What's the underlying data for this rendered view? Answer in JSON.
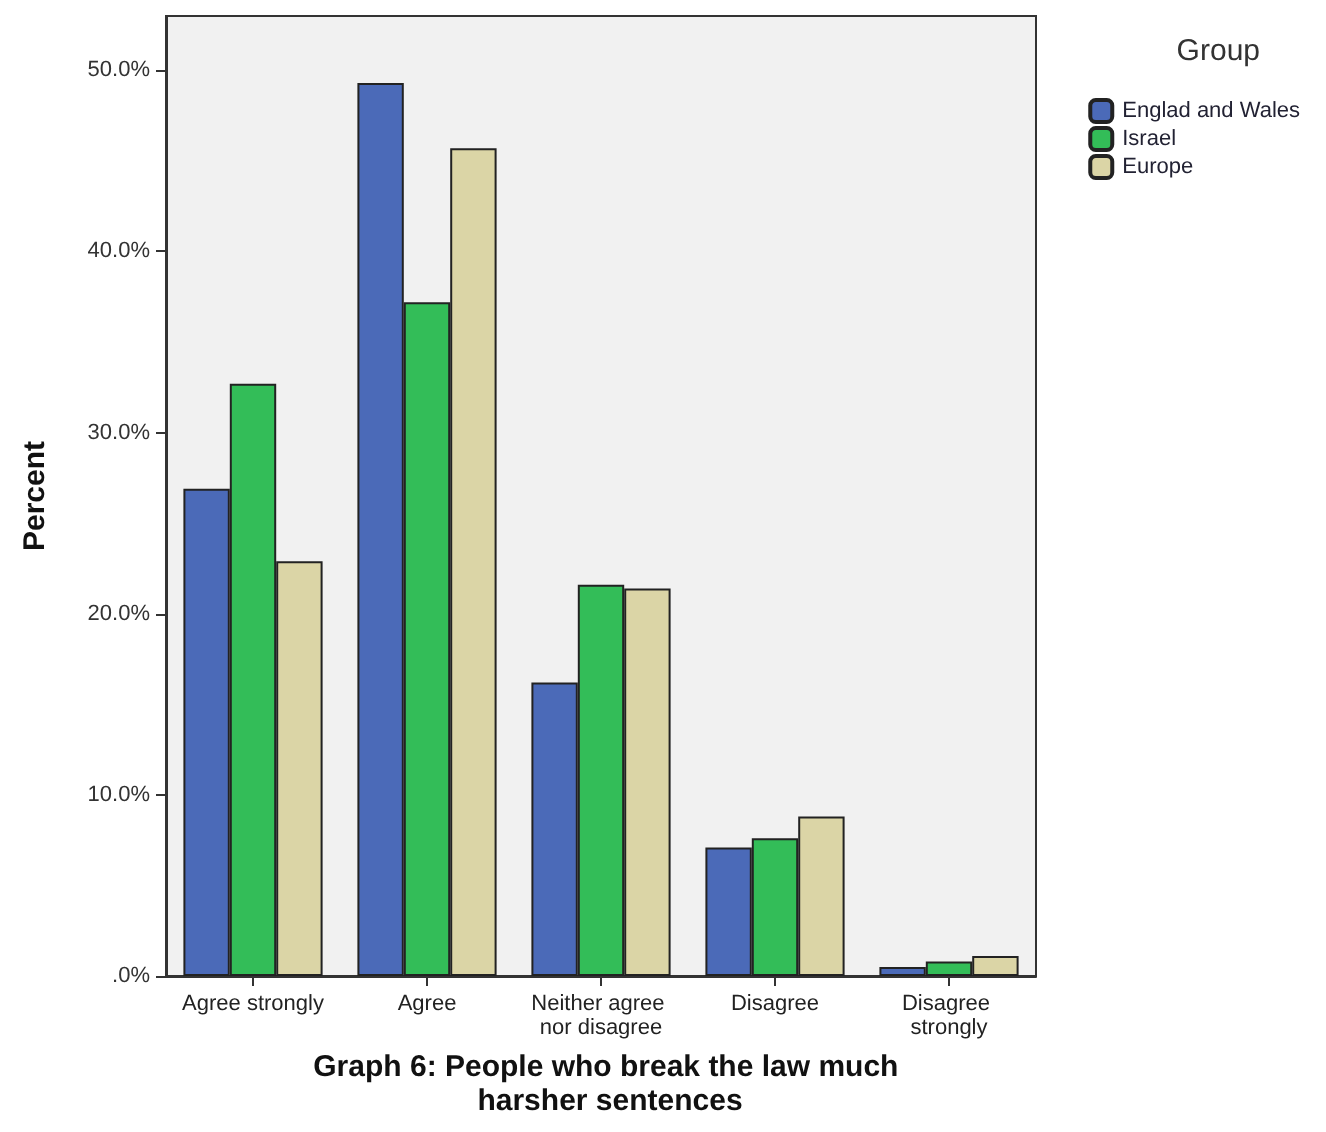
{
  "chart_data": {
    "type": "bar",
    "xlabel": "Graph 6: People who break the law much harsher sentences",
    "ylabel": "Percent",
    "legend_title": "Group",
    "legend": "top right",
    "categories": [
      "Agree strongly",
      "Agree",
      "Neither agree nor disagree",
      "Disagree",
      "Disagree strongly"
    ],
    "series": [
      {
        "name": "Englad and Wales",
        "color": "#4b6ab8",
        "values": [
          26.9,
          49.3,
          16.2,
          7.1,
          0.5
        ]
      },
      {
        "name": "Israel",
        "color": "#33bd58",
        "values": [
          32.7,
          37.2,
          21.6,
          7.6,
          0.8
        ]
      },
      {
        "name": "Europe",
        "color": "#dbd5a6",
        "values": [
          22.9,
          45.7,
          21.4,
          8.8,
          1.1
        ]
      }
    ],
    "ylim": [
      0,
      53
    ],
    "yticks": [
      {
        "value": 0,
        "label": ".0%"
      },
      {
        "value": 10,
        "label": "10.0%"
      },
      {
        "value": 20,
        "label": "20.0%"
      },
      {
        "value": 30,
        "label": "30.0%"
      },
      {
        "value": 40,
        "label": "40.0%"
      },
      {
        "value": 50,
        "label": "50.0%"
      }
    ],
    "grid": false
  }
}
